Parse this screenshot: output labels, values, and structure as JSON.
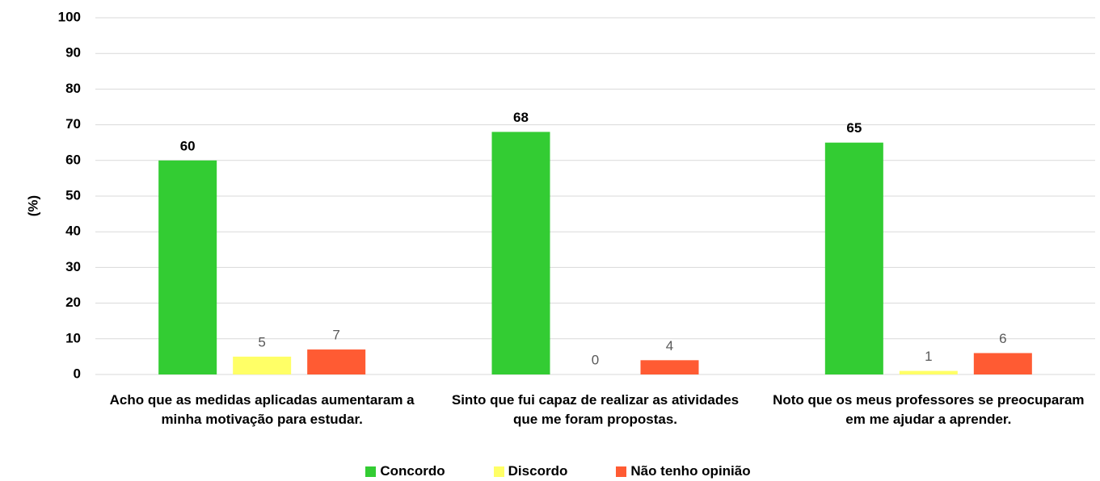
{
  "chart_data": {
    "type": "bar",
    "y_label": "(%)",
    "categories": [
      "Acho que as medidas aplicadas aumentaram a minha motivação para estudar.",
      "Sinto que fui capaz de realizar as atividades que me foram propostas.",
      "Noto que os meus professores se preocuparam em me ajudar a aprender."
    ],
    "series": [
      {
        "name": "Concordo",
        "color": "#33cc33",
        "values": [
          60,
          68,
          65
        ]
      },
      {
        "name": "Discordo",
        "color": "#ffff66",
        "values": [
          5,
          0,
          1
        ]
      },
      {
        "name": "Não tenho opinião",
        "color": "#ff5b33",
        "values": [
          7,
          4,
          6
        ]
      }
    ],
    "ylim": [
      0,
      100
    ],
    "yticks": [
      0,
      10,
      20,
      30,
      40,
      50,
      60,
      70,
      80,
      90,
      100
    ],
    "grid": true,
    "legend": "bottom"
  }
}
